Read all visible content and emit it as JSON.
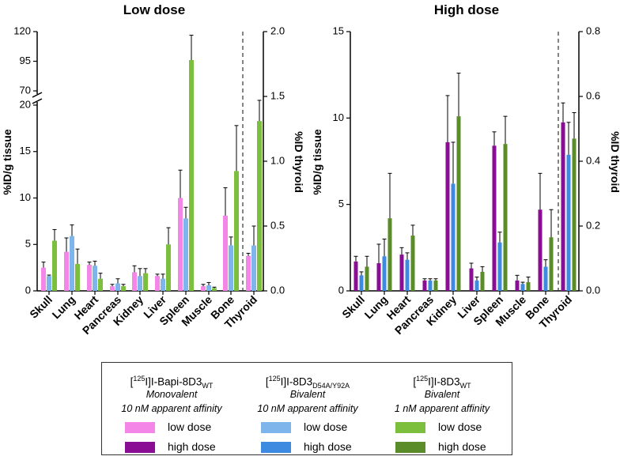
{
  "chart_data": [
    {
      "type": "bar",
      "title": "Low dose",
      "ylabel": "%ID/g tissue",
      "y2label": "%ID thyroid",
      "y_broken_axis": true,
      "y_ticks": [
        "0",
        "5",
        "10",
        "15",
        "20",
        "70",
        "95",
        "120"
      ],
      "y2_ticks": [
        "0.0",
        "0.5",
        "1.0",
        "1.5",
        "2.0"
      ],
      "ylim_lower": [
        0,
        20
      ],
      "ylim_upper": [
        70,
        120
      ],
      "y2lim": [
        0,
        2.0
      ],
      "categories": [
        "Skull",
        "Lung",
        "Heart",
        "Pancreas",
        "Kidney",
        "Liver",
        "Spleen",
        "Muscle",
        "Bone",
        "Thyroid"
      ],
      "secondary_axis_categories": [
        "Thyroid"
      ],
      "series": [
        {
          "name": "[125I]I-Bapi-8D3WT low dose",
          "color": "#f386e7",
          "values": [
            2.5,
            4.2,
            2.8,
            0.5,
            2.0,
            1.6,
            10.0,
            0.5,
            8.1,
            0.27
          ],
          "errors": [
            0.6,
            1.5,
            0.3,
            0.2,
            0.7,
            0.2,
            3.0,
            0.2,
            3.0,
            0.02
          ]
        },
        {
          "name": "[125I]I-8D3D54A/Y92A low dose",
          "color": "#7eb6ec",
          "values": [
            1.6,
            5.9,
            2.7,
            0.8,
            1.6,
            1.3,
            7.8,
            0.6,
            4.9,
            0.35
          ],
          "errors": [
            0.1,
            1.2,
            0.5,
            0.5,
            0.8,
            0.5,
            1.2,
            0.3,
            0.9,
            0.15
          ]
        },
        {
          "name": "[125I]I-8D3WT low dose",
          "color": "#7bbf3c",
          "values": [
            5.4,
            2.9,
            1.3,
            0.5,
            1.9,
            5.0,
            96,
            0.3,
            12.9,
            1.31
          ],
          "errors": [
            1.2,
            1.6,
            0.6,
            0.2,
            0.5,
            1.8,
            21,
            0.1,
            4.9,
            0.16
          ]
        }
      ]
    },
    {
      "type": "bar",
      "title": "High dose",
      "ylabel": "%ID/g tissue",
      "y2label": "%ID thyroid",
      "y_ticks": [
        "0",
        "5",
        "10",
        "15"
      ],
      "y2_ticks": [
        "0.0",
        "0.2",
        "0.4",
        "0.6",
        "0.8"
      ],
      "ylim": [
        0,
        15
      ],
      "y2lim": [
        0,
        0.8
      ],
      "categories": [
        "Skull",
        "Lung",
        "Heart",
        "Pancreas",
        "Kidney",
        "Liver",
        "Spleen",
        "Muscle",
        "Bone",
        "Thyroid"
      ],
      "secondary_axis_categories": [
        "Thyroid"
      ],
      "series": [
        {
          "name": "[125I]I-Bapi-8D3WT high dose",
          "color": "#8a0e94",
          "values": [
            1.7,
            1.6,
            2.1,
            0.6,
            8.6,
            1.3,
            8.4,
            0.6,
            4.7,
            0.52
          ],
          "errors": [
            0.3,
            1.1,
            0.4,
            0.1,
            2.7,
            0.3,
            0.8,
            0.3,
            2.1,
            0.06
          ]
        },
        {
          "name": "[125I]I-8D3D54A/Y92A high dose",
          "color": "#3d8ae0",
          "values": [
            0.9,
            2.0,
            1.8,
            0.6,
            6.2,
            0.6,
            2.8,
            0.4,
            1.4,
            0.42
          ],
          "errors": [
            0.2,
            1.0,
            0.4,
            0.1,
            2.4,
            0.2,
            0.6,
            0.1,
            0.4,
            0.1
          ]
        },
        {
          "name": "[125I]I-8D3WT high dose",
          "color": "#5a8c2a",
          "values": [
            1.4,
            4.2,
            3.2,
            0.6,
            10.1,
            1.1,
            8.5,
            0.5,
            3.1,
            0.47
          ],
          "errors": [
            0.6,
            2.6,
            0.6,
            0.1,
            2.5,
            0.3,
            1.6,
            0.3,
            1.6,
            0.08
          ]
        }
      ]
    }
  ],
  "legend": {
    "columns": [
      {
        "name_pre": "[",
        "sup": "125",
        "name_mid": "I]I-Bapi-8D3",
        "sub": "WT",
        "desc1": "Monovalent",
        "desc2": "10 nM apparent affinity",
        "low_color": "#f386e7",
        "high_color": "#8a0e94"
      },
      {
        "name_pre": "[",
        "sup": "125",
        "name_mid": "I]I-8D3",
        "sub": "D54A/Y92A",
        "desc1": "Bivalent",
        "desc2": "10 nM apparent affinity",
        "low_color": "#7eb6ec",
        "high_color": "#3d8ae0"
      },
      {
        "name_pre": "[",
        "sup": "125",
        "name_mid": "I]I-8D3",
        "sub": "WT",
        "desc1": "Bivalent",
        "desc2": "1 nM apparent affinity",
        "low_color": "#7bbf3c",
        "high_color": "#5a8c2a"
      }
    ],
    "low_label": "low dose",
    "high_label": "high dose"
  }
}
